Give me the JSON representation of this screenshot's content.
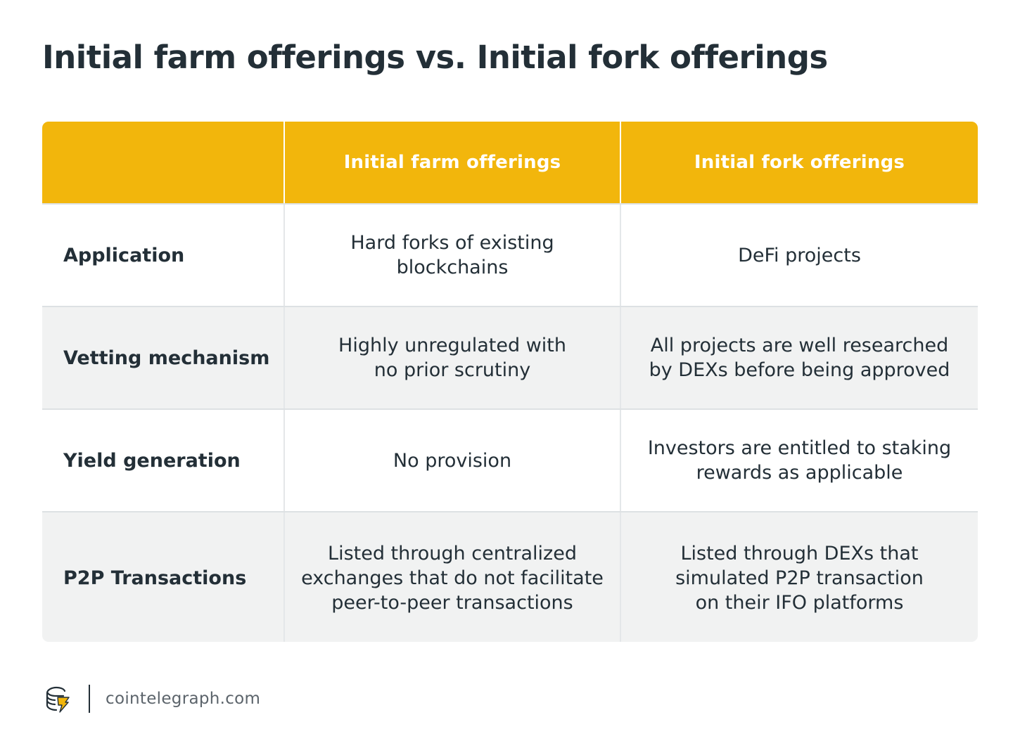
{
  "title": "Initial farm offerings vs. Initial fork offerings",
  "table": {
    "headers": [
      "",
      "Initial farm offerings",
      "Initial fork offerings"
    ],
    "rows": [
      {
        "label": "Application",
        "farm": "Hard forks of existing\nblockchains",
        "fork": "DeFi projects"
      },
      {
        "label": "Vetting mechanism",
        "farm": "Highly unregulated with\nno prior scrutiny",
        "fork": "All projects are well researched\nby DEXs before being approved"
      },
      {
        "label": "Yield generation",
        "farm": "No provision",
        "fork": "Investors are entitled to staking\nrewards as applicable"
      },
      {
        "label": "P2P Transactions",
        "farm": "Listed through centralized\nexchanges that do not facilitate\npeer-to-peer transactions",
        "fork": "Listed through DEXs that\nsimulated P2P transaction\non their IFO platforms"
      }
    ]
  },
  "footer": {
    "logo_icon": "cointelegraph-logo-icon",
    "site": "cointelegraph.com"
  },
  "colors": {
    "header_bg": "#f2b60c",
    "text": "#232f37",
    "alt_row_bg": "#f1f2f2"
  }
}
